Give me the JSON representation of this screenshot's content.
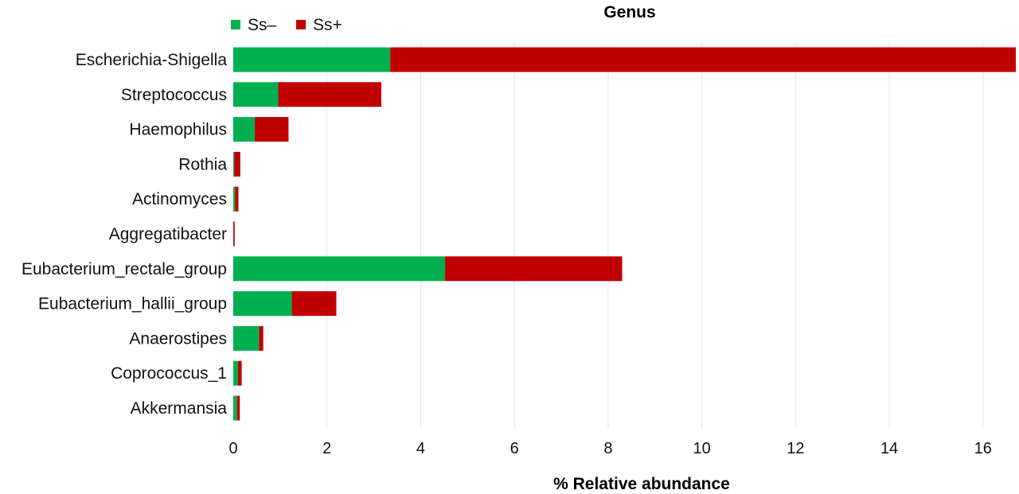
{
  "chart_data": {
    "type": "bar",
    "orientation": "horizontal",
    "stacked": true,
    "title": "Genus",
    "xlabel": "% Relative abundance",
    "ylabel": "",
    "xlim": [
      0,
      16.7
    ],
    "xticks": [
      0,
      2,
      4,
      6,
      8,
      10,
      12,
      14,
      16
    ],
    "grid": "vertical",
    "legend_position": "top-left",
    "categories": [
      "Escherichia-Shigella",
      "Streptococcus",
      "Haemophilus",
      "Rothia",
      "Actinomyces",
      "Aggregatibacter",
      "Eubacterium_rectale_group",
      "Eubacterium_hallii_group",
      "Anaerostipes",
      "Coprococcus_1",
      "Akkermansia"
    ],
    "series": [
      {
        "name": "Ss–",
        "color": "#00b050",
        "values": [
          3.35,
          0.96,
          0.46,
          0.02,
          0.04,
          0.0,
          4.52,
          1.25,
          0.55,
          0.1,
          0.08
        ]
      },
      {
        "name": "Ss+",
        "color": "#c00000",
        "values": [
          13.35,
          2.2,
          0.72,
          0.13,
          0.07,
          0.03,
          3.78,
          0.95,
          0.09,
          0.08,
          0.06
        ]
      }
    ]
  }
}
